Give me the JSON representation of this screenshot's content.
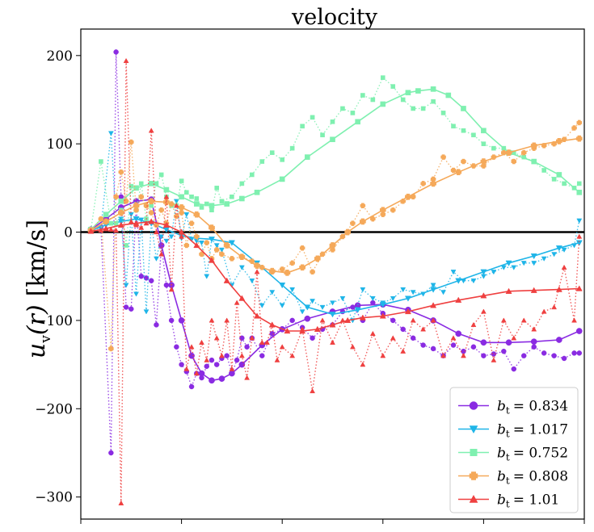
{
  "chart_data": {
    "type": "line",
    "title": "velocity",
    "xlabel": "",
    "ylabel": "u_v(r) [km/s]",
    "ylabel_parts": {
      "var": "u",
      "sub": "v",
      "arg": "(r)",
      "unit": "[km/s]"
    },
    "xlim": [
      0,
      100
    ],
    "ylim": [
      -325,
      230
    ],
    "yticks": [
      200,
      100,
      0,
      -100,
      -200,
      -300
    ],
    "ytick_labels": [
      "200",
      "100",
      "0",
      "−100",
      "−200",
      "−300"
    ],
    "xticks": [
      0,
      20,
      40,
      60,
      80,
      100
    ],
    "xtick_labels": [
      "",
      "",
      "",
      "",
      "",
      ""
    ],
    "zero_line": 0,
    "legend_position": "lower-right",
    "series": [
      {
        "name": "b_t = 0.834",
        "legend_var": "b",
        "legend_sub": "t",
        "legend_value": "= 0.834",
        "color": "#8a2be2",
        "marker": "circle",
        "smooth_x": [
          2,
          5,
          8,
          11,
          14,
          16,
          18,
          20,
          22,
          24,
          26,
          28,
          30,
          32,
          36,
          40,
          45,
          50,
          55,
          60,
          65,
          70,
          75,
          80,
          85,
          90,
          95,
          99
        ],
        "smooth_y": [
          3,
          15,
          28,
          35,
          37,
          -15,
          -60,
          -100,
          -140,
          -160,
          -168,
          -166,
          -160,
          -150,
          -128,
          -110,
          -98,
          -90,
          -83,
          -82,
          -88,
          -100,
          -115,
          -125,
          -125,
          -124,
          -122,
          -112
        ],
        "noisy_x": [
          2,
          4,
          6,
          7,
          8,
          9,
          10,
          11,
          12,
          13,
          14,
          15,
          16,
          17,
          18,
          19,
          20,
          21,
          22,
          23,
          24,
          25,
          26,
          27,
          28,
          29,
          30,
          31,
          32,
          33,
          34,
          36,
          38,
          40,
          42,
          44,
          46,
          48,
          50,
          52,
          54,
          56,
          58,
          60,
          62,
          64,
          66,
          68,
          70,
          72,
          74,
          76,
          78,
          80,
          82,
          84,
          86,
          88,
          90,
          92,
          94,
          96,
          98,
          99
        ],
        "noisy_y": [
          3,
          6,
          -250,
          204,
          40,
          -85,
          -87,
          30,
          -50,
          -52,
          -55,
          -105,
          -15,
          -60,
          -100,
          -130,
          -150,
          -158,
          -175,
          -160,
          -165,
          -152,
          -145,
          -150,
          -143,
          -140,
          -160,
          -145,
          -120,
          -130,
          -120,
          -140,
          -115,
          -110,
          -100,
          -108,
          -120,
          -110,
          -105,
          -90,
          -85,
          -100,
          -80,
          -92,
          -100,
          -110,
          -120,
          -128,
          -132,
          -140,
          -128,
          -135,
          -130,
          -140,
          -138,
          -135,
          -155,
          -140,
          -130,
          -137,
          -140,
          -143,
          -137,
          -137
        ]
      },
      {
        "name": "b_t = 1.017",
        "legend_var": "b",
        "legend_sub": "t",
        "legend_value": "= 1.017",
        "color": "#1fb5e8",
        "marker": "triangle-down",
        "smooth_x": [
          2,
          5,
          8,
          11,
          14,
          17,
          20,
          23,
          26,
          30,
          35,
          40,
          45,
          50,
          55,
          60,
          65,
          70,
          75,
          80,
          85,
          90,
          95,
          99
        ],
        "smooth_y": [
          2,
          8,
          12,
          15,
          10,
          3,
          -4,
          -7,
          -8,
          -12,
          -35,
          -60,
          -85,
          -93,
          -88,
          -82,
          -75,
          -65,
          -55,
          -45,
          -35,
          -27,
          -18,
          -12
        ],
        "noisy_x": [
          2,
          4,
          6,
          7,
          8,
          9,
          10,
          11,
          12,
          13,
          14,
          15,
          16,
          17,
          18,
          19,
          20,
          21,
          22,
          23,
          24,
          25,
          26,
          27,
          28,
          30,
          32,
          34,
          36,
          38,
          40,
          42,
          44,
          46,
          48,
          50,
          52,
          54,
          56,
          58,
          60,
          62,
          64,
          66,
          68,
          70,
          72,
          74,
          76,
          78,
          80,
          82,
          84,
          86,
          88,
          90,
          92,
          94,
          96,
          98,
          99
        ],
        "noisy_y": [
          2,
          5,
          112,
          10,
          15,
          -60,
          20,
          -70,
          14,
          -90,
          10,
          -30,
          -5,
          -10,
          -5,
          35,
          -7,
          20,
          -8,
          -10,
          -12,
          -50,
          -8,
          -15,
          -20,
          -60,
          -40,
          -55,
          -83,
          -68,
          -83,
          -65,
          -90,
          -78,
          -85,
          -80,
          -75,
          -100,
          -65,
          -75,
          -80,
          -75,
          -65,
          -68,
          -70,
          -60,
          -68,
          -45,
          -55,
          -55,
          -50,
          -45,
          -40,
          -40,
          -35,
          -35,
          -30,
          -25,
          -20,
          -15,
          13
        ]
      },
      {
        "name": "b_t = 0.752",
        "legend_var": "b",
        "legend_sub": "t",
        "legend_value": "= 0.752",
        "color": "#7ff0b0",
        "marker": "square",
        "smooth_x": [
          2,
          5,
          8,
          11,
          14,
          17,
          20,
          23,
          26,
          29,
          32,
          35,
          40,
          45,
          50,
          55,
          60,
          65,
          67,
          70,
          73,
          76,
          80,
          85,
          90,
          95,
          99
        ],
        "smooth_y": [
          3,
          20,
          35,
          50,
          55,
          48,
          40,
          32,
          30,
          32,
          38,
          45,
          60,
          85,
          105,
          125,
          145,
          158,
          160,
          162,
          155,
          140,
          115,
          90,
          80,
          65,
          45
        ],
        "noisy_x": [
          2,
          4,
          6,
          7,
          8,
          9,
          10,
          11,
          12,
          13,
          14,
          15,
          16,
          17,
          18,
          19,
          20,
          21,
          22,
          23,
          24,
          25,
          26,
          27,
          28,
          30,
          32,
          34,
          36,
          38,
          40,
          42,
          44,
          46,
          48,
          50,
          52,
          54,
          56,
          58,
          60,
          62,
          64,
          66,
          68,
          70,
          72,
          74,
          76,
          78,
          80,
          82,
          84,
          86,
          88,
          90,
          92,
          94,
          96,
          98,
          99
        ],
        "noisy_y": [
          3,
          80,
          10,
          10,
          25,
          -15,
          52,
          25,
          55,
          15,
          30,
          55,
          65,
          40,
          30,
          30,
          58,
          45,
          40,
          38,
          28,
          32,
          25,
          50,
          35,
          40,
          55,
          65,
          80,
          90,
          82,
          95,
          120,
          130,
          110,
          125,
          140,
          135,
          155,
          150,
          175,
          165,
          150,
          140,
          140,
          148,
          135,
          120,
          115,
          110,
          100,
          95,
          95,
          90,
          85,
          80,
          70,
          60,
          55,
          50,
          55
        ]
      },
      {
        "name": "b_t = 0.808",
        "legend_var": "b",
        "legend_sub": "t",
        "legend_value": "= 0.808",
        "color": "#f5a95a",
        "marker": "plus",
        "smooth_x": [
          2,
          5,
          8,
          11,
          14,
          17,
          20,
          23,
          26,
          29,
          32,
          35,
          38,
          41,
          44,
          47,
          50,
          53,
          56,
          60,
          65,
          70,
          75,
          80,
          85,
          90,
          95,
          99
        ],
        "smooth_y": [
          2,
          12,
          22,
          30,
          35,
          34,
          28,
          20,
          5,
          -15,
          -28,
          -38,
          -44,
          -46,
          -40,
          -30,
          -15,
          0,
          12,
          25,
          40,
          55,
          68,
          80,
          90,
          98,
          103,
          106
        ],
        "noisy_x": [
          2,
          4,
          6,
          7,
          8,
          9,
          10,
          11,
          12,
          13,
          14,
          15,
          16,
          17,
          18,
          19,
          20,
          21,
          22,
          23,
          24,
          25,
          26,
          27,
          28,
          30,
          32,
          34,
          36,
          38,
          40,
          42,
          44,
          46,
          48,
          50,
          52,
          54,
          56,
          58,
          60,
          62,
          64,
          66,
          68,
          70,
          72,
          74,
          76,
          78,
          80,
          82,
          84,
          86,
          88,
          90,
          92,
          94,
          96,
          98,
          99
        ],
        "noisy_y": [
          2,
          15,
          -132,
          40,
          68,
          35,
          102,
          25,
          40,
          30,
          22,
          8,
          25,
          10,
          32,
          18,
          22,
          -15,
          10,
          -5,
          -25,
          -12,
          -30,
          -20,
          -25,
          -30,
          -28,
          -33,
          -40,
          -45,
          -42,
          -35,
          -18,
          -45,
          -25,
          -20,
          -5,
          10,
          30,
          15,
          20,
          25,
          35,
          40,
          55,
          60,
          85,
          70,
          80,
          75,
          75,
          85,
          90,
          80,
          90,
          95,
          98,
          100,
          105,
          118,
          124
        ]
      },
      {
        "name": "b_t = 1.01",
        "legend_var": "b",
        "legend_sub": "t",
        "legend_value": "= 1.01",
        "color": "#ef4040",
        "marker": "triangle-up",
        "smooth_x": [
          2,
          5,
          8,
          11,
          14,
          17,
          20,
          23,
          26,
          29,
          32,
          35,
          38,
          41,
          44,
          47,
          50,
          53,
          56,
          60,
          65,
          70,
          75,
          80,
          85,
          90,
          95,
          99
        ],
        "smooth_y": [
          1,
          4,
          8,
          10,
          12,
          8,
          0,
          -15,
          -32,
          -55,
          -75,
          -95,
          -105,
          -112,
          -112,
          -110,
          -105,
          -100,
          -97,
          -95,
          -90,
          -83,
          -77,
          -72,
          -67,
          -66,
          -65,
          -64
        ],
        "noisy_x": [
          2,
          4,
          6,
          7,
          8,
          9,
          10,
          11,
          12,
          13,
          14,
          15,
          16,
          17,
          18,
          19,
          20,
          21,
          22,
          23,
          24,
          25,
          26,
          27,
          28,
          29,
          30,
          31,
          32,
          33,
          34,
          35,
          36,
          37,
          38,
          39,
          40,
          42,
          44,
          46,
          48,
          50,
          52,
          54,
          56,
          58,
          60,
          62,
          64,
          66,
          68,
          70,
          72,
          74,
          76,
          78,
          80,
          82,
          84,
          86,
          88,
          90,
          92,
          94,
          96,
          98,
          99
        ],
        "noisy_y": [
          1,
          2,
          3,
          2,
          -307,
          194,
          12,
          8,
          5,
          10,
          115,
          0,
          -25,
          40,
          -65,
          30,
          -5,
          -155,
          -130,
          -160,
          -125,
          -145,
          -100,
          -120,
          -140,
          -100,
          -155,
          -80,
          -140,
          -165,
          -120,
          -45,
          -125,
          -125,
          -105,
          -145,
          -130,
          -140,
          -110,
          -180,
          -100,
          -125,
          -100,
          -130,
          -150,
          -115,
          -140,
          -120,
          -135,
          -100,
          -110,
          -100,
          -140,
          -120,
          -140,
          -105,
          -90,
          -145,
          -100,
          -120,
          -100,
          -110,
          -90,
          -85,
          -40,
          -100,
          -5
        ]
      }
    ]
  }
}
